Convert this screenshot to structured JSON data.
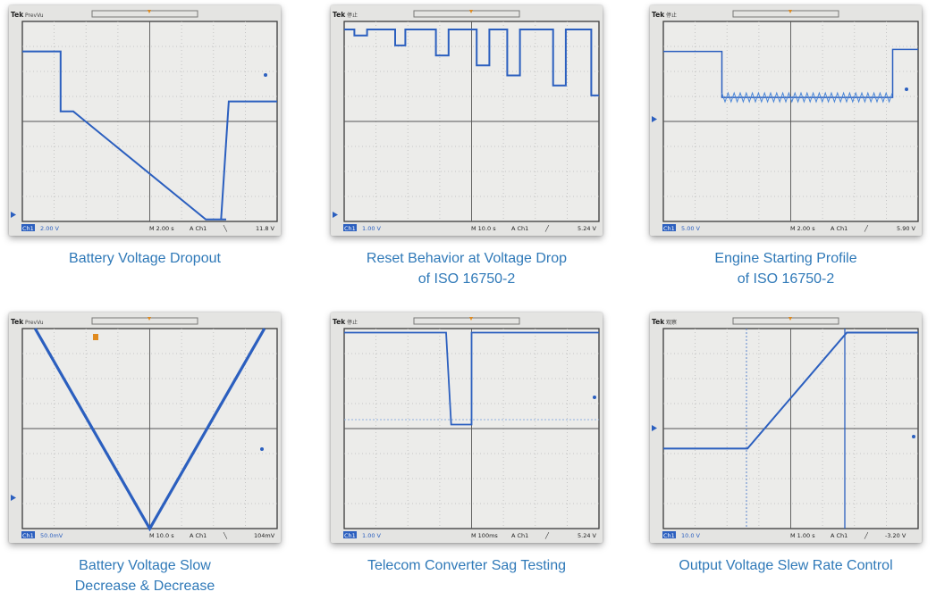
{
  "accent_color": "#2f79b8",
  "trace_color": "#2b5fbf",
  "panels": [
    {
      "id": "battery-dropout",
      "tek": "Tek",
      "mode": "PrevVu",
      "ch_label": "Ch1",
      "volts_div": "2.00 V",
      "timebase": "M 2.00 s",
      "trig_src": "A  Ch1",
      "slope_glyph": "╲",
      "trig_level": "11.8 V",
      "caption_line1": "Battery Voltage Dropout",
      "caption_line2": "",
      "trace": [
        [
          0,
          0.85
        ],
        [
          0.15,
          0.85
        ],
        [
          0.15,
          0.55
        ],
        [
          0.2,
          0.55
        ],
        [
          0.72,
          0.01
        ],
        [
          0.8,
          0.01
        ],
        [
          0.78,
          0.01
        ],
        [
          0.81,
          0.6
        ],
        [
          1,
          0.6
        ]
      ]
    },
    {
      "id": "reset-behavior",
      "tek": "Tek",
      "mode": "停止",
      "ch_label": "Ch1",
      "volts_div": "1.00 V",
      "timebase": "M 10.0 s",
      "trig_src": "A  Ch1",
      "slope_glyph": "╱",
      "trig_level": "5.24 V",
      "caption_line1": "Reset Behavior at Voltage Drop",
      "caption_line2": "of ISO 16750-2",
      "trace": [
        [
          0,
          0.96
        ],
        [
          0.04,
          0.96
        ],
        [
          0.04,
          0.93
        ],
        [
          0.09,
          0.93
        ],
        [
          0.09,
          0.96
        ],
        [
          0.2,
          0.96
        ],
        [
          0.2,
          0.88
        ],
        [
          0.24,
          0.88
        ],
        [
          0.24,
          0.96
        ],
        [
          0.36,
          0.96
        ],
        [
          0.36,
          0.83
        ],
        [
          0.41,
          0.83
        ],
        [
          0.41,
          0.96
        ],
        [
          0.52,
          0.96
        ],
        [
          0.52,
          0.78
        ],
        [
          0.57,
          0.78
        ],
        [
          0.57,
          0.96
        ],
        [
          0.64,
          0.96
        ],
        [
          0.64,
          0.73
        ],
        [
          0.69,
          0.73
        ],
        [
          0.69,
          0.96
        ],
        [
          0.82,
          0.96
        ],
        [
          0.82,
          0.68
        ],
        [
          0.87,
          0.68
        ],
        [
          0.87,
          0.96
        ],
        [
          0.97,
          0.96
        ],
        [
          0.97,
          0.63
        ],
        [
          1,
          0.63
        ]
      ]
    },
    {
      "id": "engine-starting",
      "tek": "Tek",
      "mode": "停止",
      "ch_label": "Ch1",
      "volts_div": "5.00 V",
      "timebase": "M 2.00 s",
      "trig_src": "A  Ch1",
      "slope_glyph": "╱",
      "trig_level": "5.90 V",
      "caption_line1": "Engine Starting Profile",
      "caption_line2": "of ISO 16750-2",
      "trace": [
        [
          0,
          0.85
        ],
        [
          0.23,
          0.85
        ],
        [
          0.23,
          0.62
        ],
        [
          0.9,
          0.62
        ],
        [
          0.9,
          0.86
        ],
        [
          1,
          0.86
        ]
      ]
    },
    {
      "id": "battery-slow-decrease",
      "tek": "Tek",
      "mode": "PrevVu",
      "ch_label": "Ch1",
      "volts_div": "50.0mV",
      "timebase": "M 10.0 s",
      "trig_src": "A  Ch1",
      "slope_glyph": "╲",
      "trig_level": "104mV",
      "caption_line1": "Battery Voltage Slow",
      "caption_line2": "Decrease & Decrease",
      "trace": [
        [
          0.05,
          1
        ],
        [
          0.5,
          0
        ],
        [
          0.95,
          1
        ]
      ]
    },
    {
      "id": "telecom-sag",
      "tek": "Tek",
      "mode": "停止",
      "ch_label": "Ch1",
      "volts_div": "1.00 V",
      "timebase": "M 100ms",
      "trig_src": "A  Ch1",
      "slope_glyph": "╱",
      "trig_level": "5.24 V",
      "caption_line1": "Telecom Converter Sag Testing",
      "caption_line2": "",
      "trace": [
        [
          0,
          0.98
        ],
        [
          0.4,
          0.98
        ],
        [
          0.42,
          0.52
        ],
        [
          0.5,
          0.52
        ],
        [
          0.5,
          0.98
        ],
        [
          1,
          0.98
        ]
      ]
    },
    {
      "id": "slew-rate",
      "tek": "Tek",
      "mode": "观察",
      "ch_label": "Ch1",
      "volts_div": "10.0 V",
      "timebase": "M 1.00 s",
      "trig_src": "A  Ch1",
      "slope_glyph": "╱",
      "trig_level": "-3.20 V",
      "caption_line1": "Output Voltage Slew Rate Control",
      "caption_line2": "",
      "trace": [
        [
          0,
          0.4
        ],
        [
          0.33,
          0.4
        ],
        [
          0.72,
          0.98
        ],
        [
          1,
          0.98
        ]
      ]
    }
  ]
}
